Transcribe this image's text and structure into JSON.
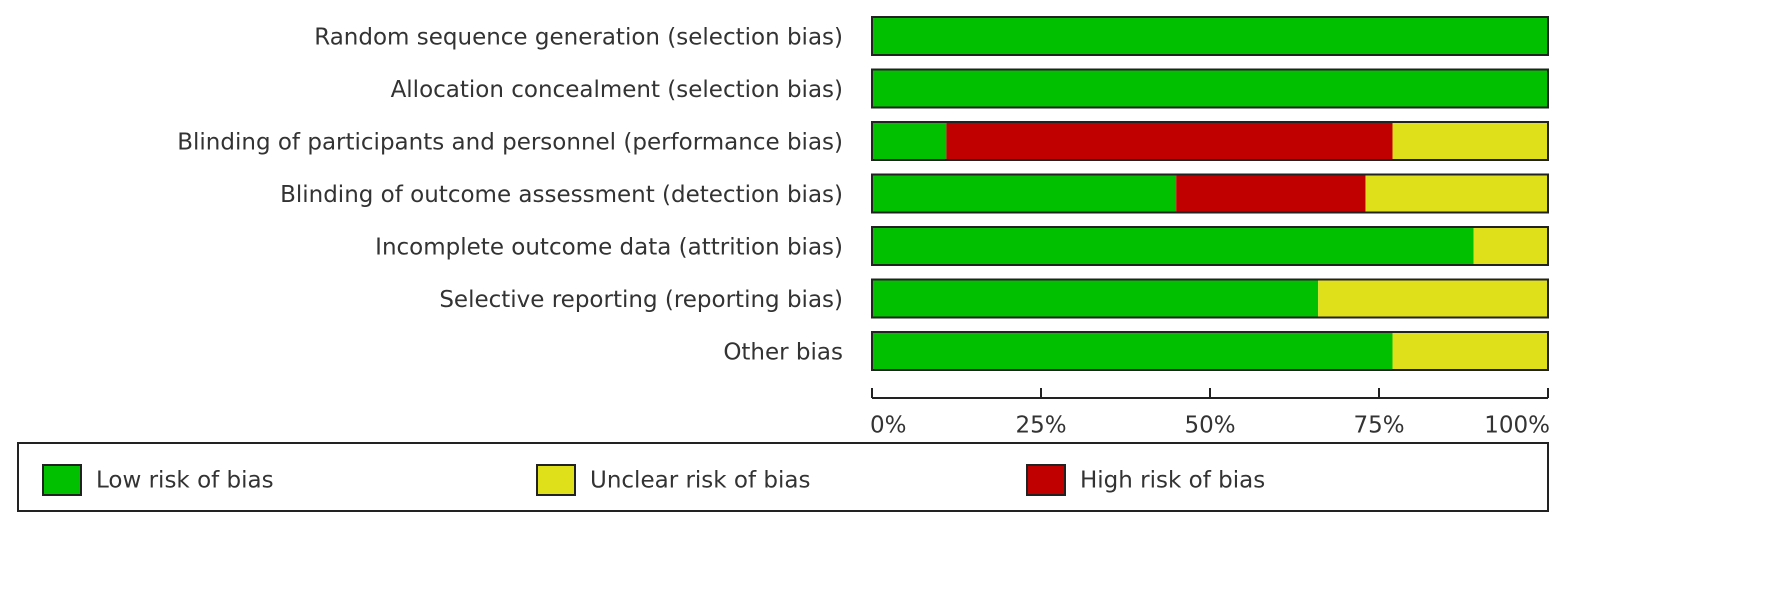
{
  "chart_data": {
    "type": "stacked-bar-horizontal",
    "categories": [
      "Random sequence generation (selection bias)",
      "Allocation concealment (selection bias)",
      "Blinding of participants and personnel (performance bias)",
      "Blinding of outcome assessment (detection bias)",
      "Incomplete outcome data (attrition bias)",
      "Selective reporting (reporting bias)",
      "Other bias"
    ],
    "series": [
      {
        "name": "Low risk of bias",
        "color": "#00c000",
        "values": [
          100,
          100,
          11,
          45,
          89,
          66,
          77
        ]
      },
      {
        "name": "Unclear risk of bias",
        "color": "#e0e01a",
        "values": [
          0,
          0,
          23,
          27,
          11,
          34,
          23
        ]
      },
      {
        "name": "High risk of bias",
        "color": "#c00000",
        "values": [
          0,
          0,
          66,
          28,
          0,
          0,
          0
        ]
      }
    ],
    "xlim": [
      0,
      100
    ],
    "xticks": [
      {
        "value": 0,
        "label": "0%"
      },
      {
        "value": 25,
        "label": "25%"
      },
      {
        "value": 50,
        "label": "50%"
      },
      {
        "value": 75,
        "label": "75%"
      },
      {
        "value": 100,
        "label": "100%"
      }
    ]
  }
}
